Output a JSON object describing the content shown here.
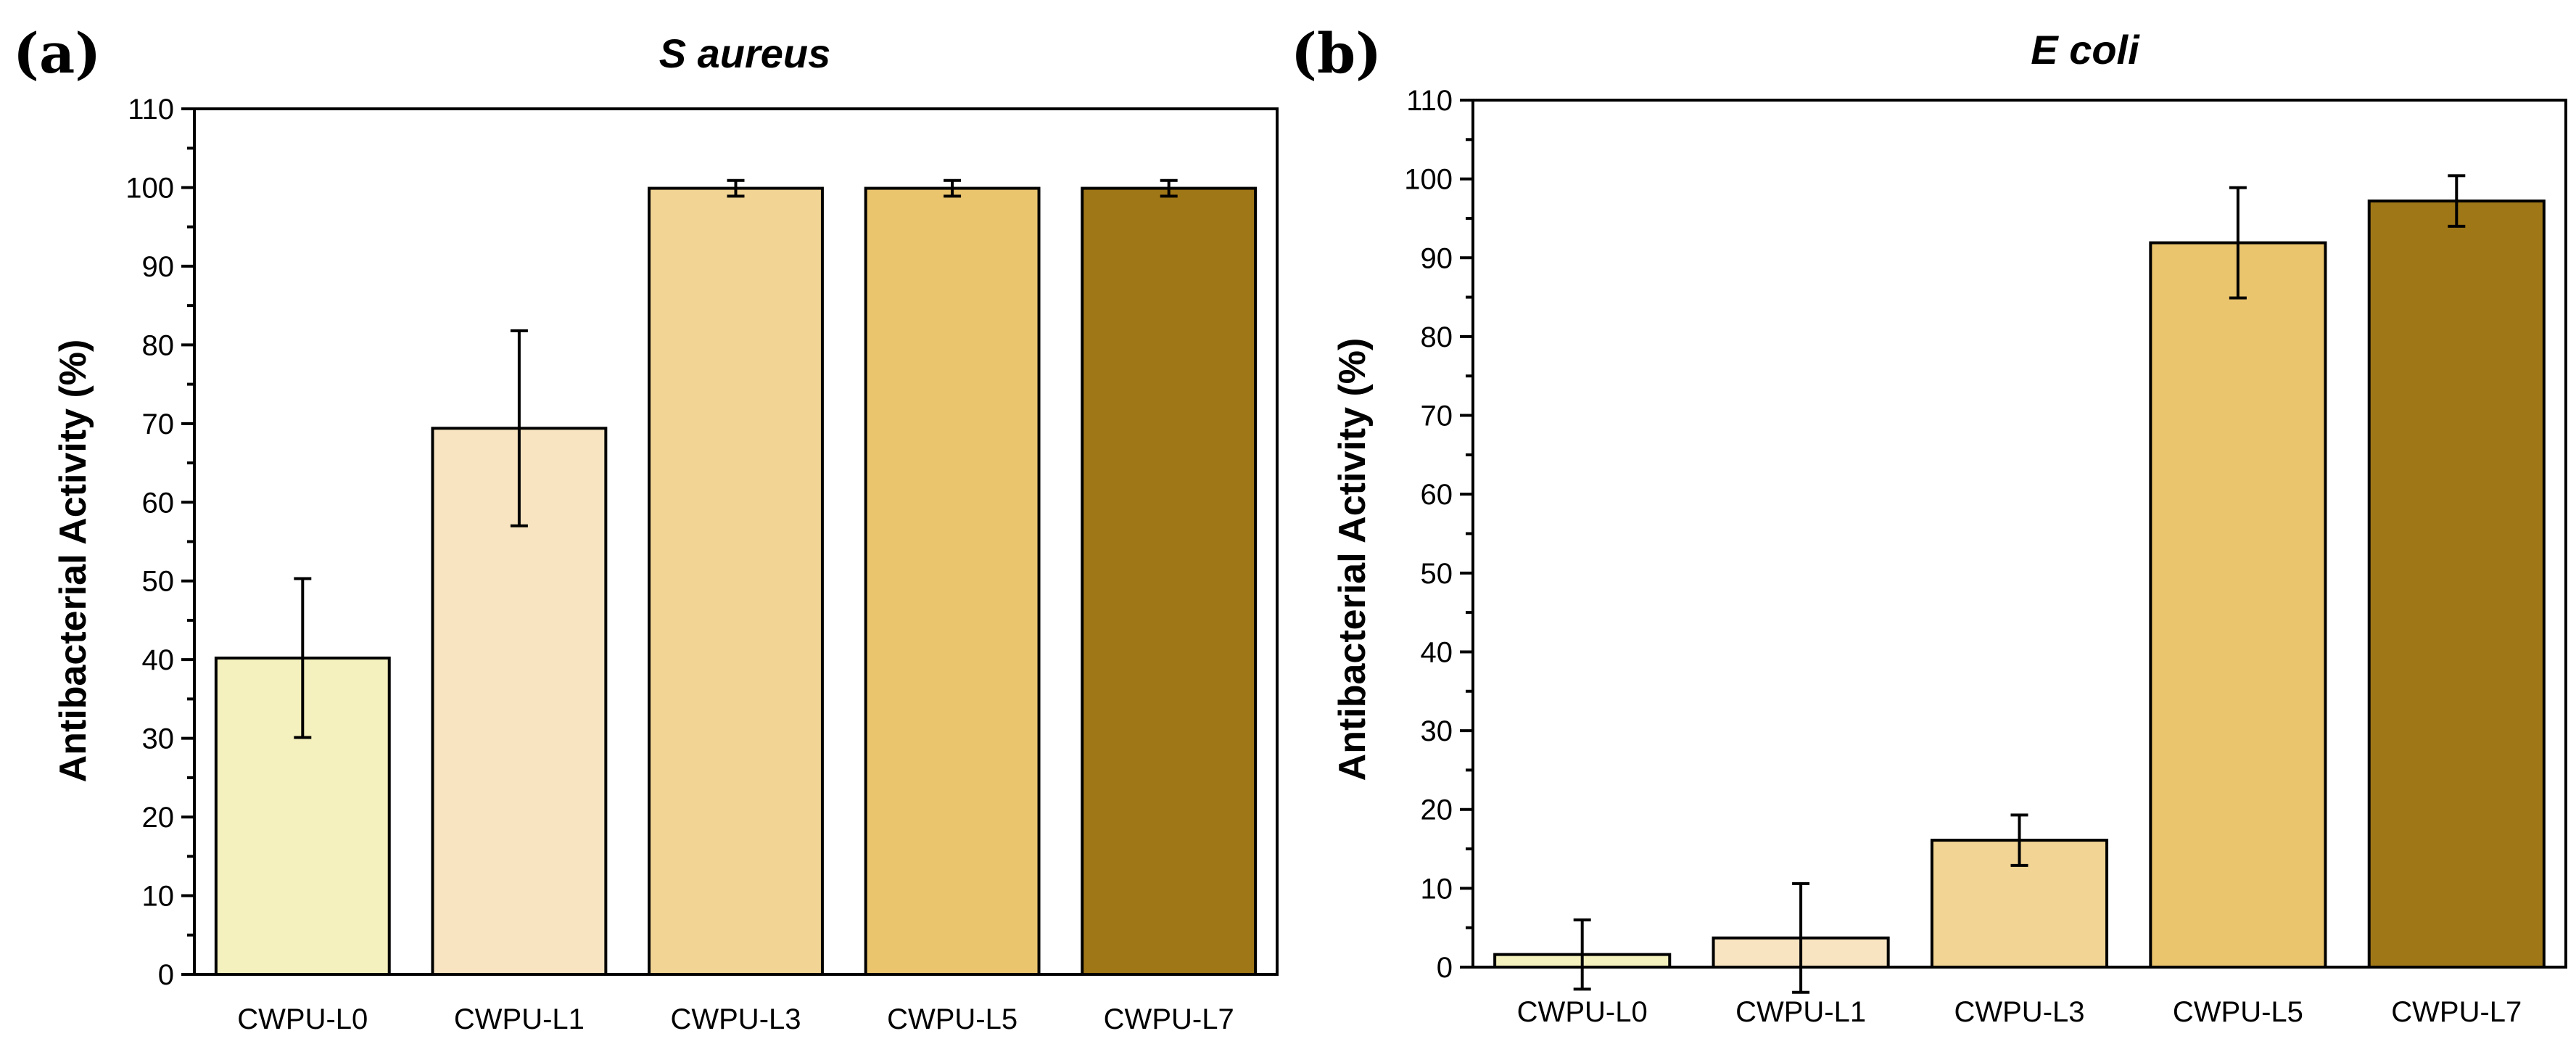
{
  "chart_data": [
    {
      "type": "bar",
      "panel_label": "(a)",
      "title": "S aureus",
      "xlabel": "",
      "ylabel": "Antibacterial Activity (%)",
      "ylim": [
        0,
        110
      ],
      "yticks": [
        "0",
        "10",
        "20",
        "30",
        "40",
        "50",
        "60",
        "70",
        "80",
        "90",
        "100",
        "110"
      ],
      "categories": [
        "CWPU-L0",
        "CWPU-L1",
        "CWPU-L3",
        "CWPU-L5",
        "CWPU-L7"
      ],
      "values": [
        40.2,
        69.4,
        99.9,
        99.9,
        99.9
      ],
      "errors": [
        10.1,
        12.4,
        1.0,
        1.0,
        1.0
      ],
      "colors": [
        "#F5F1BE",
        "#F8E4C0",
        "#F2D594",
        "#EBC56E",
        "#A07717"
      ]
    },
    {
      "type": "bar",
      "panel_label": "(b)",
      "title": "E coli",
      "xlabel": "",
      "ylabel": "Antibacterial Activity (%)",
      "ylim": [
        0,
        110
      ],
      "yticks": [
        "0",
        "10",
        "20",
        "30",
        "40",
        "50",
        "60",
        "70",
        "80",
        "90",
        "100",
        "110"
      ],
      "categories": [
        "CWPU-L0",
        "CWPU-L1",
        "CWPU-L3",
        "CWPU-L5",
        "CWPU-L7"
      ],
      "values": [
        1.6,
        3.7,
        16.1,
        91.9,
        97.2
      ],
      "errors": [
        4.4,
        6.9,
        3.2,
        7.0,
        3.2
      ],
      "colors": [
        "#F5F1BE",
        "#F8E4C0",
        "#F2D594",
        "#EBC56E",
        "#A07717"
      ]
    }
  ]
}
